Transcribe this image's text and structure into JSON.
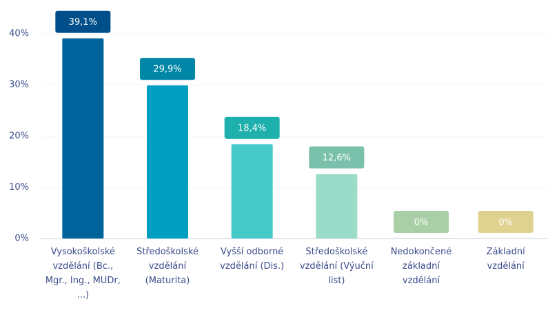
{
  "chart_data": {
    "type": "bar",
    "categories": [
      "Vysokoškolské vzdělání (Bc., Mgr., Ing., MUDr, ...)",
      "Středoškolské vzdělání (Maturita)",
      "Vyšší odborné vzdělání (Dis.)",
      "Středoškolské vzdělání (Výuční list)",
      "Nedokončené základní vzdělání",
      "Základní vzdělání"
    ],
    "values": [
      39.1,
      29.9,
      18.4,
      12.6,
      0,
      0
    ],
    "value_labels": [
      "39,1%",
      "29,9%",
      "18,4%",
      "12,6%",
      "0%",
      "0%"
    ],
    "colors": [
      "#00649c",
      "#009fc2",
      "#45c9c9",
      "#9adcc8",
      "#a7cfa5",
      "#ded08f"
    ],
    "label_colors": [
      "#004f8a",
      "#0087a8",
      "#1eb0ac",
      "#7ac0ab",
      "#a8cfa6",
      "#dfd18f"
    ],
    "ylim": [
      0,
      40
    ],
    "yticks": [
      {
        "value": 0,
        "label": "0%"
      },
      {
        "value": 10,
        "label": "10%"
      },
      {
        "value": 20,
        "label": "20%"
      },
      {
        "value": 30,
        "label": "30%"
      },
      {
        "value": 40,
        "label": "40%"
      }
    ],
    "grid": true
  }
}
